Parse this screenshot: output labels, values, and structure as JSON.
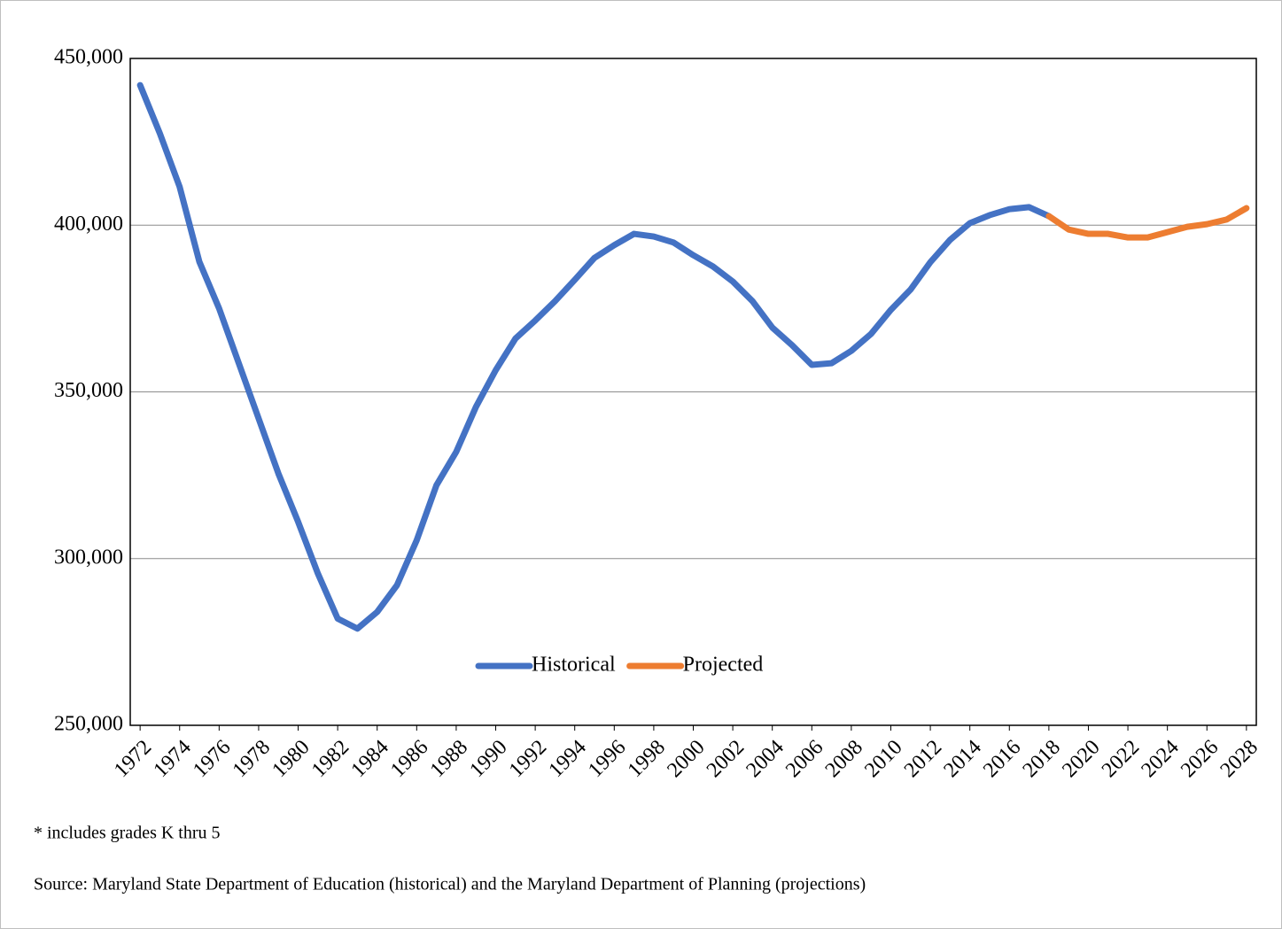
{
  "chart_data": {
    "type": "line",
    "x": [
      1972,
      1973,
      1974,
      1975,
      1976,
      1977,
      1978,
      1979,
      1980,
      1981,
      1982,
      1983,
      1984,
      1985,
      1986,
      1987,
      1988,
      1989,
      1990,
      1991,
      1992,
      1993,
      1994,
      1995,
      1996,
      1997,
      1998,
      1999,
      2000,
      2001,
      2002,
      2003,
      2004,
      2005,
      2006,
      2007,
      2008,
      2009,
      2010,
      2011,
      2012,
      2013,
      2014,
      2015,
      2016,
      2017,
      2018,
      2019,
      2020,
      2021,
      2022,
      2023,
      2024,
      2025,
      2026,
      2027,
      2028
    ],
    "series": [
      {
        "name": "Historical",
        "color": "#4472c4",
        "values": [
          442000,
          427500,
          411500,
          389000,
          375000,
          358500,
          342000,
          325500,
          311000,
          295500,
          282000,
          279000,
          284000,
          292000,
          305500,
          322000,
          332000,
          345500,
          356500,
          366000,
          371400,
          377200,
          383600,
          390200,
          394000,
          397400,
          396600,
          394800,
          391000,
          387600,
          383100,
          377200,
          369300,
          364000,
          358100,
          358600,
          362300,
          367400,
          374600,
          380700,
          388900,
          395600,
          400600,
          403000,
          404800,
          405400,
          402700,
          null,
          null,
          null,
          null,
          null,
          null,
          null,
          null,
          null,
          null
        ]
      },
      {
        "name": "Projected",
        "color": "#ed7d31",
        "values": [
          null,
          null,
          null,
          null,
          null,
          null,
          null,
          null,
          null,
          null,
          null,
          null,
          null,
          null,
          null,
          null,
          null,
          null,
          null,
          null,
          null,
          null,
          null,
          null,
          null,
          null,
          null,
          null,
          null,
          null,
          null,
          null,
          null,
          null,
          null,
          null,
          null,
          null,
          null,
          null,
          null,
          null,
          null,
          null,
          null,
          null,
          402700,
          398700,
          397400,
          397400,
          396300,
          396300,
          397900,
          399500,
          400300,
          401700,
          405100
        ]
      }
    ],
    "xlim": [
      1971.5,
      2028.5
    ],
    "xticks": [
      1972,
      1974,
      1976,
      1978,
      1980,
      1982,
      1984,
      1986,
      1988,
      1990,
      1992,
      1994,
      1996,
      1998,
      2000,
      2002,
      2004,
      2006,
      2008,
      2010,
      2012,
      2014,
      2016,
      2018,
      2020,
      2022,
      2024,
      2026,
      2028
    ],
    "ylim": [
      250000,
      450000
    ],
    "yticks": [
      {
        "value": 250000,
        "label": "250,000"
      },
      {
        "value": 300000,
        "label": "300,000"
      },
      {
        "value": 350000,
        "label": "350,000"
      },
      {
        "value": 400000,
        "label": "400,000"
      },
      {
        "value": 450000,
        "label": "450,000"
      }
    ],
    "grid": true,
    "legend": "center",
    "notes": [
      "* includes grades K thru 5",
      "Source: Maryland State Department of Education (historical) and the Maryland Department of Planning (projections)"
    ]
  }
}
